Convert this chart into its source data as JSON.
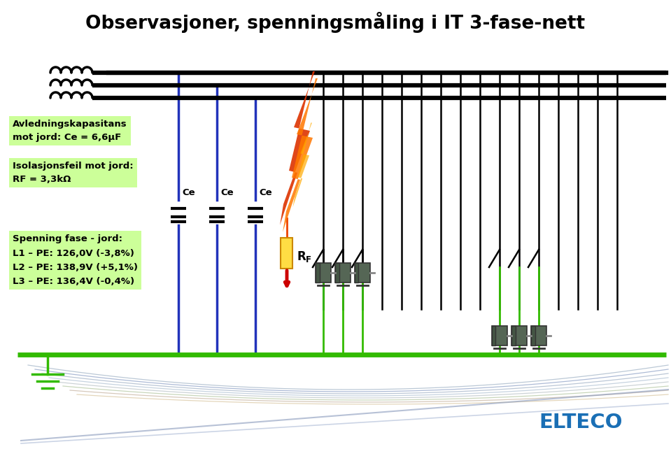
{
  "title": "Observasjoner, spenningsmåling i IT 3-fase-nett",
  "bg_color": "#ffffff",
  "light_green": "#ccff99",
  "blue_line_color": "#2233bb",
  "black_line_color": "#000000",
  "green_line_color": "#33bb00",
  "box1_text": "Avledningskapasitans\nmot jord: Ce = 6,6μF",
  "box2_text": "Isolasjonsfeil mot jord:\nRF = 3,3kΩ",
  "box3_title": "Spenning fase - jord:",
  "box3_line1": "L1 – PE: 126,0V (-3,8%)",
  "box3_line2": "L2 – PE: 138,9V (+5,1%)",
  "box3_line3": "L3 – PE: 136,4V (-0,4%)",
  "ce_label": "Ce",
  "euteco_color": "#1a6fb5"
}
